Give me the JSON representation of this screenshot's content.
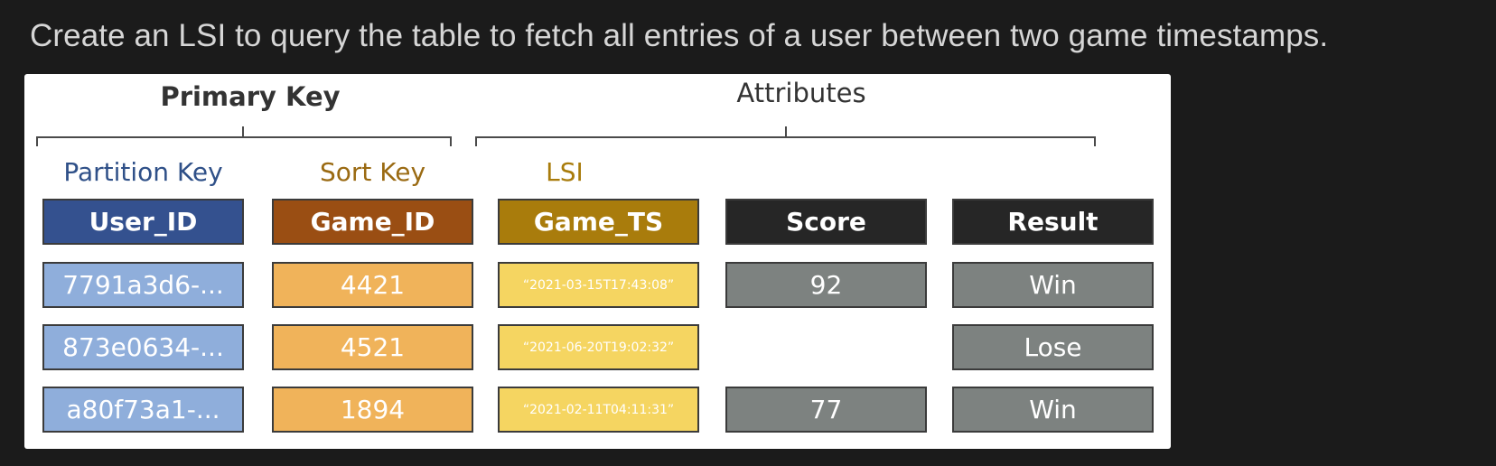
{
  "question": "Create an LSI to query the table to fetch all entries of a user between two game timestamps.",
  "diagram": {
    "primary_key_title": "Primary Key",
    "attributes_title": "Attributes",
    "key_labels": {
      "partition": "Partition Key",
      "sort": "Sort Key",
      "lsi": "LSI"
    },
    "columns": [
      "User_ID",
      "Game_ID",
      "Game_TS",
      "Score",
      "Result"
    ],
    "rows": [
      {
        "user_id": "7791a3d6-...",
        "game_id": "4421",
        "game_ts": "“2021-03-15T17:43:08”",
        "score": "92",
        "result": "Win"
      },
      {
        "user_id": "873e0634-...",
        "game_id": "4521",
        "game_ts": "“2021-06-20T19:02:32”",
        "score": "",
        "result": "Lose"
      },
      {
        "user_id": "a80f73a1-...",
        "game_id": "1894",
        "game_ts": "“2021-02-11T04:11:31”",
        "score": "77",
        "result": "Win"
      }
    ],
    "colors": {
      "partition_key": "#34518f",
      "sort_key": "#9a4e13",
      "lsi": "#a97c0c",
      "attribute_header": "#262626",
      "partition_label": "#2f5088",
      "sort_label": "#9a6a12",
      "lsi_label": "#a97c0c"
    }
  }
}
